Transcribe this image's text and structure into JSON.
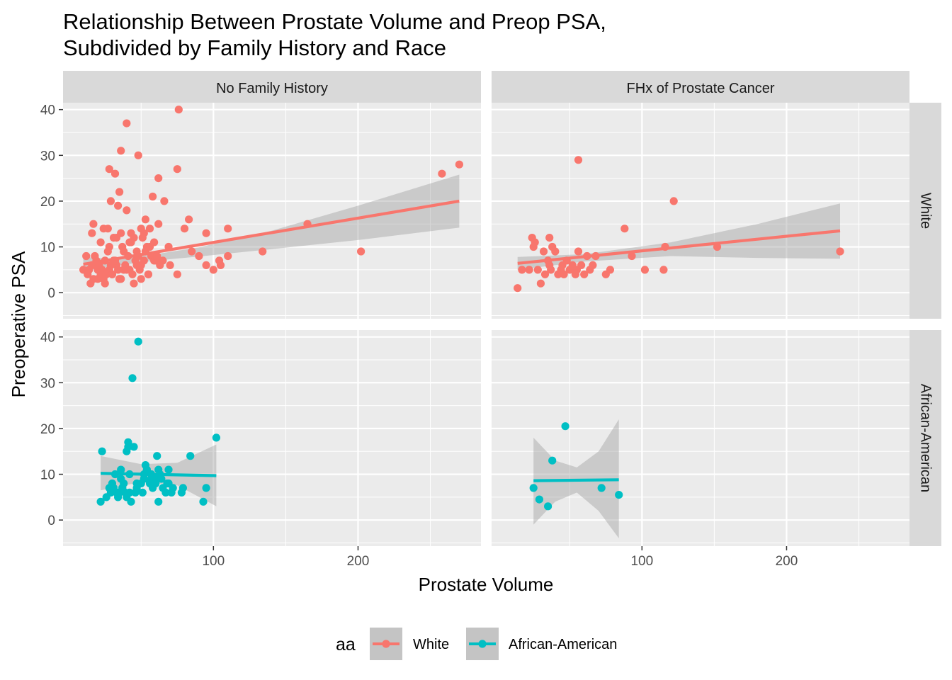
{
  "chart_data": {
    "type": "scatter",
    "title": "Relationship Between Prostate Volume and Preop PSA,",
    "subtitle": "Subdivided by Family History and Race",
    "xlabel": "Prostate Volume",
    "ylabel": "Preoperative PSA",
    "xlim": [
      -4,
      285
    ],
    "ylim": [
      -5.7,
      41.5
    ],
    "x_ticks": [
      100,
      200
    ],
    "y_ticks": [
      0,
      10,
      20,
      30,
      40
    ],
    "grid": true,
    "smoother": "linear fit with confidence band",
    "col_facets": [
      "No Family History",
      "FHx of Prostate Cancer"
    ],
    "row_facets": [
      "White",
      "African-American"
    ],
    "legend": {
      "title": "aa",
      "position": "bottom",
      "entries": [
        {
          "label": "White",
          "color": "#F8766D"
        },
        {
          "label": "African-American",
          "color": "#00BFC4"
        }
      ]
    },
    "panels": [
      {
        "col": "No Family History",
        "row": "White",
        "color": "#F8766D",
        "x": [
          10,
          13,
          15,
          17,
          18,
          20,
          22,
          24,
          25,
          28,
          30,
          33,
          35,
          38,
          12,
          16,
          19,
          23,
          26,
          29,
          31,
          34,
          36,
          39,
          42,
          44,
          47,
          49,
          52,
          55,
          14,
          18,
          21,
          27,
          32,
          37,
          41,
          46,
          50,
          53,
          57,
          60,
          63,
          20,
          25,
          30,
          35,
          40,
          45,
          50,
          55,
          22,
          28,
          33,
          38,
          43,
          48,
          54,
          59,
          16,
          24,
          31,
          36,
          42,
          47,
          51,
          56,
          61,
          65,
          70,
          17,
          27,
          43,
          53,
          62,
          75,
          80,
          85,
          90,
          95,
          100,
          105,
          110,
          165,
          202,
          258,
          270,
          45,
          95,
          110,
          35,
          62,
          48,
          32,
          28,
          40,
          58,
          66,
          75,
          76,
          83,
          104,
          134,
          56,
          50,
          36,
          40,
          34,
          29,
          59,
          69,
          52
        ],
        "y": [
          5,
          4,
          2,
          3,
          6,
          5,
          4,
          3,
          7,
          5,
          4,
          6,
          3,
          5,
          8,
          6,
          7,
          5,
          4,
          6,
          7,
          5,
          3,
          6,
          5,
          4,
          6,
          5,
          7,
          4,
          5,
          8,
          6,
          9,
          7,
          10,
          8,
          7,
          6,
          9,
          8,
          7,
          6,
          3,
          2,
          4,
          3,
          5,
          2,
          3,
          4,
          11,
          10,
          12,
          9,
          11,
          8,
          10,
          7,
          13,
          14,
          12,
          13,
          11,
          9,
          12,
          10,
          8,
          7,
          6,
          15,
          14,
          13,
          16,
          15,
          4,
          14,
          9,
          8,
          6,
          5,
          6,
          8,
          15,
          9,
          26,
          28,
          12,
          13,
          14,
          22,
          25,
          30,
          26,
          27,
          37,
          21,
          20,
          27,
          40,
          16,
          7,
          9,
          14,
          14,
          31,
          18,
          19,
          20,
          11,
          10,
          13
        ],
        "fit": {
          "x": [
            10,
            270
          ],
          "y": [
            6.2,
            20.0
          ]
        },
        "band": {
          "x": [
            10,
            30,
            60,
            90,
            140,
            200,
            270
          ],
          "lo": [
            4.6,
            5.8,
            7.0,
            7.9,
            9.5,
            11.5,
            14.2
          ],
          "hi": [
            7.8,
            7.4,
            8.4,
            9.9,
            13.5,
            19.0,
            25.8
          ]
        }
      },
      {
        "col": "FHx of Prostate Cancer",
        "row": "White",
        "color": "#F8766D",
        "x": [
          14,
          17,
          22,
          24,
          25,
          26,
          28,
          30,
          32,
          33,
          35,
          36,
          37,
          38,
          40,
          42,
          44,
          45,
          46,
          48,
          50,
          52,
          54,
          55,
          56,
          58,
          60,
          62,
          64,
          66,
          68,
          75,
          78,
          88,
          93,
          102,
          115,
          116,
          122,
          152,
          237,
          56,
          36
        ],
        "y": [
          1,
          5,
          5,
          12,
          10,
          11,
          5,
          2,
          9,
          4,
          7,
          6,
          5,
          10,
          9,
          4,
          5,
          6,
          4,
          7,
          5,
          6,
          4,
          5,
          9,
          6,
          4,
          8,
          5,
          6,
          8,
          4,
          5,
          14,
          8,
          5,
          5,
          10,
          20,
          10,
          9,
          29,
          12
        ],
        "fit": {
          "x": [
            14,
            237
          ],
          "y": [
            6.4,
            13.5
          ]
        },
        "band": {
          "x": [
            14,
            60,
            120,
            180,
            237
          ],
          "lo": [
            5.0,
            6.8,
            8.0,
            7.6,
            7.4
          ],
          "hi": [
            7.8,
            8.4,
            11.0,
            15.0,
            19.5
          ]
        }
      },
      {
        "col": "No Family History",
        "row": "African-American",
        "color": "#00BFC4",
        "x": [
          22,
          23,
          26,
          28,
          29,
          30,
          31,
          32,
          33,
          34,
          35,
          36,
          36,
          37,
          38,
          39,
          40,
          40,
          41,
          41,
          42,
          43,
          44,
          45,
          46,
          47,
          48,
          50,
          51,
          52,
          53,
          54,
          56,
          57,
          58,
          59,
          60,
          61,
          62,
          63,
          64,
          65,
          67,
          68,
          69,
          71,
          72,
          79,
          84,
          93,
          102,
          37,
          42,
          47,
          52,
          57,
          62,
          69,
          78,
          95
        ],
        "y": [
          4,
          15,
          5,
          7,
          6,
          8,
          7,
          10,
          6,
          5,
          6,
          9,
          11,
          7,
          8,
          6,
          5,
          15,
          16,
          17,
          6,
          4,
          31,
          16,
          6,
          7,
          39,
          8,
          6,
          10,
          12,
          11,
          8,
          9,
          7,
          9,
          8,
          14,
          4,
          10,
          9,
          7,
          6,
          8,
          11,
          6,
          7,
          7,
          14,
          4,
          18,
          7,
          10,
          8,
          9,
          10,
          11,
          8,
          6,
          7
        ],
        "fit": {
          "x": [
            22,
            102
          ],
          "y": [
            10.2,
            9.7
          ]
        },
        "band": {
          "x": [
            22,
            50,
            75,
            102
          ],
          "lo": [
            6.5,
            8.3,
            7.6,
            3.0
          ],
          "hi": [
            14.0,
            12.2,
            12.5,
            16.5
          ]
        }
      },
      {
        "col": "FHx of Prostate Cancer",
        "row": "African-American",
        "color": "#00BFC4",
        "x": [
          25,
          29,
          35,
          38,
          47,
          72,
          84
        ],
        "y": [
          7,
          4.5,
          3,
          13,
          20.5,
          7,
          5.5
        ],
        "fit": {
          "x": [
            25,
            84
          ],
          "y": [
            8.6,
            8.8
          ]
        },
        "band": {
          "x": [
            25,
            40,
            55,
            70,
            84
          ],
          "lo": [
            -1.0,
            4.0,
            6.0,
            2.0,
            -4.0
          ],
          "hi": [
            18.0,
            13.0,
            11.5,
            15.0,
            22.0
          ]
        }
      }
    ]
  }
}
